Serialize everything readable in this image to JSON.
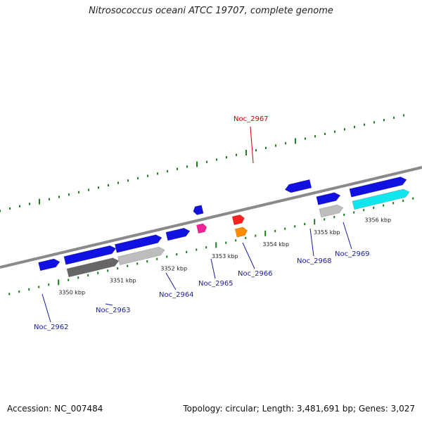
{
  "title": "Nitrosococcus oceani ATCC 19707, complete genome",
  "footer": {
    "accession": "Accession: NC_007484",
    "summary": "Topology: circular; Length: 3,481,691 bp; Genes: 3,027"
  },
  "colors": {
    "backbone": "#8a8a8a",
    "tick": "#1f7a1f",
    "label_blue": "#1a1aa6",
    "label_red": "#cc0000"
  },
  "scale": {
    "unit": "kbp",
    "ticks": [
      {
        "value": 3350,
        "label": "3350 kbp"
      },
      {
        "value": 3351,
        "label": "3351 kbp"
      },
      {
        "value": 3352,
        "label": "3352 kbp"
      },
      {
        "value": 3353,
        "label": "3353 kbp"
      },
      {
        "value": 3354,
        "label": "3354 kbp"
      },
      {
        "value": 3355,
        "label": "3355 kbp"
      },
      {
        "value": 3356,
        "label": "3356 kbp"
      }
    ]
  },
  "features": [
    {
      "start": 3349.7,
      "end": 3350.1,
      "strand": "+",
      "color": "#1010e0"
    },
    {
      "start": 3350.2,
      "end": 3351.2,
      "strand": "+",
      "color": "#1010e0"
    },
    {
      "start": 3351.2,
      "end": 3352.1,
      "strand": "+",
      "color": "#1010e0"
    },
    {
      "start": 3352.2,
      "end": 3352.65,
      "strand": "+",
      "color": "#1010e0"
    },
    {
      "start": 3352.8,
      "end": 3352.98,
      "strand": "-",
      "color": "#1010e0"
    },
    {
      "start": 3354.6,
      "end": 3355.1,
      "strand": "-",
      "color": "#1010e0"
    },
    {
      "start": 3355.15,
      "end": 3355.6,
      "strand": "+",
      "color": "#1010e0"
    },
    {
      "start": 3355.8,
      "end": 3356.9,
      "strand": "+",
      "color": "#1010e0"
    },
    {
      "start": 3350.2,
      "end": 3351.2,
      "strand": "+",
      "color": "#666666"
    },
    {
      "start": 3351.2,
      "end": 3352.1,
      "strand": "+",
      "color": "#bdbdbd"
    },
    {
      "start": 3352.8,
      "end": 3352.98,
      "strand": "+",
      "color": "#ee2299"
    },
    {
      "start": 3355.15,
      "end": 3355.6,
      "strand": "+",
      "color": "#bdbdbd"
    },
    {
      "start": 3355.8,
      "end": 3356.9,
      "strand": "+",
      "color": "#11e6ee"
    },
    {
      "start": 3353.5,
      "end": 3353.72,
      "strand": "+",
      "color": "#ff2020"
    },
    {
      "start": 3353.5,
      "end": 3353.72,
      "strand": "+",
      "color": "#ff8c00"
    }
  ],
  "genes": [
    {
      "name": "Noc_2962",
      "color": "#1a1aa6"
    },
    {
      "name": "Noc_2963",
      "color": "#1a1aa6"
    },
    {
      "name": "Noc_2964",
      "color": "#1a1aa6"
    },
    {
      "name": "Noc_2965",
      "color": "#1a1aa6"
    },
    {
      "name": "Noc_2966",
      "color": "#1a1aa6"
    },
    {
      "name": "Noc_2967",
      "color": "#cc0000"
    },
    {
      "name": "Noc_2968",
      "color": "#1a1aa6"
    },
    {
      "name": "Noc_2969",
      "color": "#1a1aa6"
    }
  ]
}
